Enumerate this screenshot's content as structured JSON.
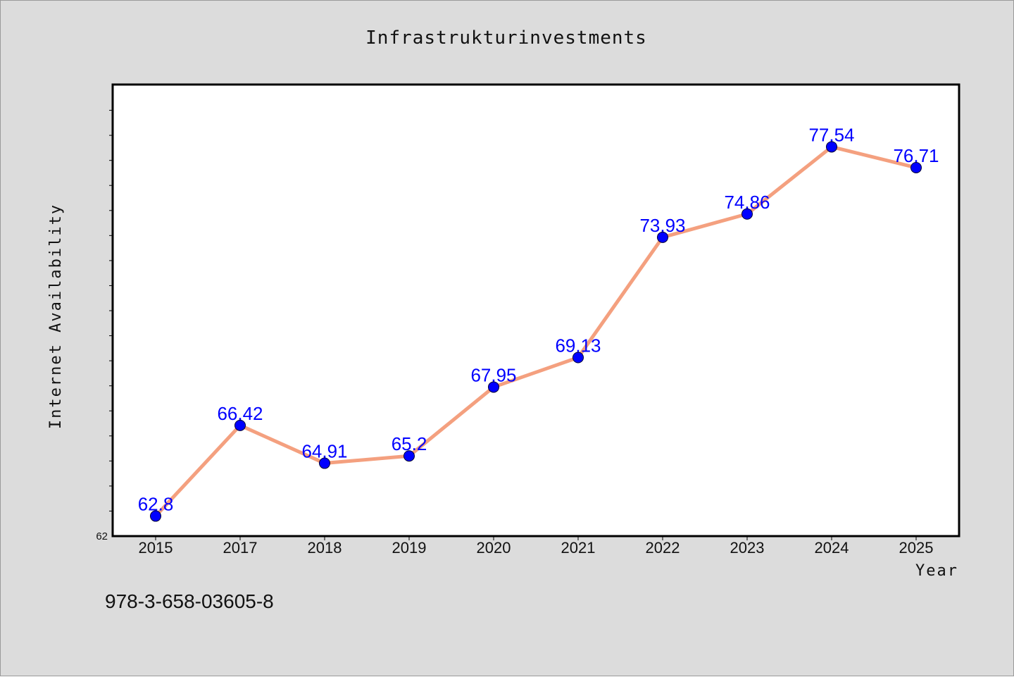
{
  "chart_data": {
    "type": "line",
    "title": "Infrastrukturinvestments",
    "xlabel": "Year",
    "ylabel": "Internet Availability",
    "categories": [
      "2015",
      "2017",
      "2018",
      "2019",
      "2020",
      "2021",
      "2022",
      "2023",
      "2024",
      "2025"
    ],
    "series": [
      {
        "values": [
          62.8,
          66.42,
          64.91,
          65.2,
          67.95,
          69.13,
          73.93,
          74.86,
          77.54,
          76.71
        ],
        "data_labels": [
          "62.8",
          "66.42",
          "64.91",
          "65.2",
          "67.95",
          "69.13",
          "73.93",
          "74.86",
          "77.54",
          "76.71"
        ]
      }
    ],
    "ylim": [
      62,
      80
    ],
    "y_tick_labels": [
      "62"
    ],
    "grid": false,
    "legend": "none",
    "colors": {
      "line": "#f4a07f",
      "marker": "#0000ff",
      "marker_edge": "#000033",
      "data_label": "#0000ff",
      "plot_background": "#ffffff",
      "figure_background": "#dcdcdc"
    }
  },
  "footer_text": "978-3-658-03605-8"
}
